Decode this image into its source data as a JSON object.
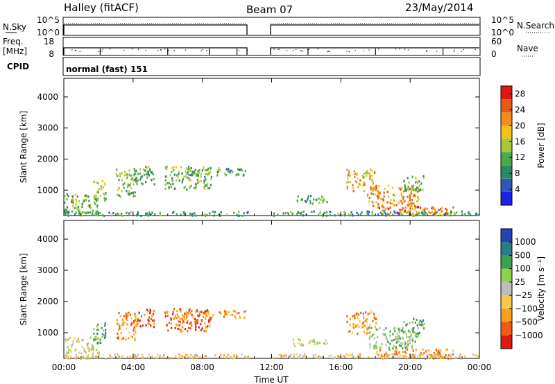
{
  "header": {
    "station": "Halley (fitACF)",
    "beam": "Beam 07",
    "date": "23/May/2014"
  },
  "strips": {
    "nsky_label": "N.Sky",
    "nsearch_label": "N.Search",
    "log_ticks": [
      "10^5",
      "10^0"
    ],
    "freq_label_1": "Freq.",
    "freq_label_2": "[MHz]",
    "freq_ticks": [
      "18",
      "8"
    ],
    "nave_label": "Nave",
    "nave_ticks": [
      "60",
      "0"
    ],
    "cpid_label": "CPID",
    "cpid_value": "normal (fast) 151"
  },
  "colors": {
    "power": [
      "#1a24e6",
      "#2f56b8",
      "#2e8a66",
      "#4fa84a",
      "#a6c93a",
      "#f2c21a",
      "#f28c1a",
      "#e85a12",
      "#e01a10"
    ],
    "velocity": [
      "#e01a10",
      "#f25a10",
      "#f5a21a",
      "#f7c84a",
      "#bdbdbd",
      "#8fd24a",
      "#3f9f50",
      "#2a7a8a",
      "#2244b0"
    ]
  },
  "chart_data": [
    {
      "type": "heatmap",
      "parameter": "power",
      "xlabel": "Time UT",
      "ylabel": "Slant Range [km]",
      "colorbar_label": "Power [dB]",
      "x_ticks": [
        "00:00",
        "04:00",
        "08:00",
        "12:00",
        "16:00",
        "20:00",
        "00:00"
      ],
      "x_range_hours": [
        0,
        24
      ],
      "y_ticks": [
        1000,
        2000,
        3000,
        4000
      ],
      "y_range_km": [
        180,
        4600
      ],
      "colorbar_ticks": [
        4,
        8,
        12,
        16,
        20,
        24,
        28
      ],
      "colorbar_range": [
        0,
        30
      ],
      "echo_regions": [
        {
          "t0": 0.0,
          "t1": 2.0,
          "r0": 200,
          "r1": 900,
          "level": 12
        },
        {
          "t0": 1.6,
          "t1": 2.4,
          "r0": 700,
          "r1": 1350,
          "level": 14
        },
        {
          "t0": 3.0,
          "t1": 4.2,
          "r0": 800,
          "r1": 1700,
          "level": 13
        },
        {
          "t0": 4.0,
          "t1": 5.2,
          "r0": 1200,
          "r1": 1800,
          "level": 11
        },
        {
          "t0": 5.8,
          "t1": 8.5,
          "r0": 1050,
          "r1": 1800,
          "level": 13
        },
        {
          "t0": 7.0,
          "t1": 10.5,
          "r0": 1500,
          "r1": 1750,
          "level": 10
        },
        {
          "t0": 13.2,
          "t1": 15.2,
          "r0": 600,
          "r1": 850,
          "level": 11
        },
        {
          "t0": 16.3,
          "t1": 18.0,
          "r0": 1000,
          "r1": 1700,
          "level": 20
        },
        {
          "t0": 17.5,
          "t1": 20.5,
          "r0": 500,
          "r1": 1200,
          "level": 22
        },
        {
          "t0": 18.0,
          "t1": 22.5,
          "r0": 200,
          "r1": 500,
          "level": 25
        },
        {
          "t0": 19.5,
          "t1": 20.8,
          "r0": 1000,
          "r1": 1500,
          "level": 12
        },
        {
          "t0": 0.0,
          "t1": 24.0,
          "r0": 200,
          "r1": 350,
          "level": 9
        }
      ]
    },
    {
      "type": "heatmap",
      "parameter": "velocity",
      "xlabel": "Time UT",
      "ylabel": "Slant Range [km]",
      "colorbar_label": "Velocity [m s⁻¹]",
      "x_ticks": [
        "00:00",
        "04:00",
        "08:00",
        "12:00",
        "16:00",
        "20:00",
        "00:00"
      ],
      "x_range_hours": [
        0,
        24
      ],
      "y_ticks": [
        1000,
        2000,
        3000,
        4000
      ],
      "y_range_km": [
        180,
        4600
      ],
      "colorbar_ticks": [
        "1000",
        "500",
        "100",
        "25",
        "−25",
        "−100",
        "−500",
        "−1000"
      ],
      "echo_regions": [
        {
          "t0": 0.0,
          "t1": 2.0,
          "r0": 200,
          "r1": 900,
          "level": 4
        },
        {
          "t0": 1.6,
          "t1": 2.4,
          "r0": 700,
          "r1": 1350,
          "level": 6
        },
        {
          "t0": 3.0,
          "t1": 4.2,
          "r0": 800,
          "r1": 1700,
          "level": 2
        },
        {
          "t0": 4.0,
          "t1": 5.2,
          "r0": 1200,
          "r1": 1800,
          "level": 1
        },
        {
          "t0": 5.8,
          "t1": 8.5,
          "r0": 1050,
          "r1": 1800,
          "level": 1
        },
        {
          "t0": 7.0,
          "t1": 10.5,
          "r0": 1500,
          "r1": 1750,
          "level": 2
        },
        {
          "t0": 13.2,
          "t1": 15.2,
          "r0": 600,
          "r1": 850,
          "level": 4
        },
        {
          "t0": 16.3,
          "t1": 18.0,
          "r0": 1000,
          "r1": 1700,
          "level": 2
        },
        {
          "t0": 17.5,
          "t1": 20.5,
          "r0": 500,
          "r1": 1200,
          "level": 5
        },
        {
          "t0": 18.0,
          "t1": 22.5,
          "r0": 200,
          "r1": 500,
          "level": 2
        },
        {
          "t0": 19.5,
          "t1": 20.8,
          "r0": 1000,
          "r1": 1500,
          "level": 6
        },
        {
          "t0": 0.0,
          "t1": 24.0,
          "r0": 200,
          "r1": 350,
          "level": 3
        }
      ]
    }
  ]
}
